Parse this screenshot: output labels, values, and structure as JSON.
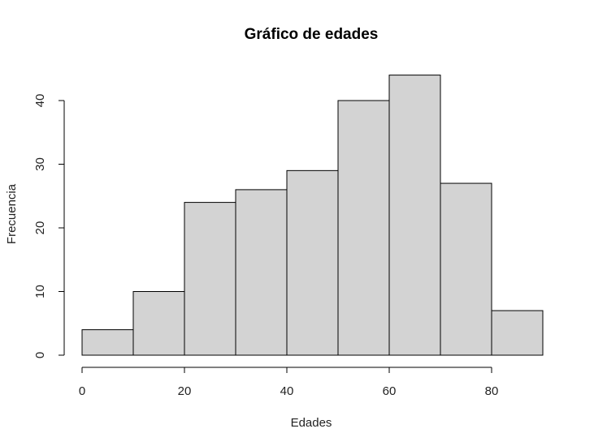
{
  "chart_data": {
    "type": "bar",
    "title": "Gráfico de edades",
    "xlabel": "Edades",
    "ylabel": "Frecuencia",
    "bins": [
      {
        "start": 0,
        "end": 10,
        "count": 4
      },
      {
        "start": 10,
        "end": 20,
        "count": 10
      },
      {
        "start": 20,
        "end": 30,
        "count": 24
      },
      {
        "start": 30,
        "end": 40,
        "count": 26
      },
      {
        "start": 40,
        "end": 50,
        "count": 29
      },
      {
        "start": 50,
        "end": 60,
        "count": 40
      },
      {
        "start": 60,
        "end": 70,
        "count": 44
      },
      {
        "start": 70,
        "end": 80,
        "count": 27
      },
      {
        "start": 80,
        "end": 90,
        "count": 7
      }
    ],
    "x_ticks": [
      "0",
      "20",
      "40",
      "60",
      "80"
    ],
    "y_ticks": [
      "0",
      "10",
      "20",
      "30",
      "40"
    ],
    "xlim": [
      0,
      90
    ],
    "ylim": [
      0,
      44
    ],
    "bar_color": "#d3d3d3",
    "grid": false,
    "legend": "none"
  }
}
